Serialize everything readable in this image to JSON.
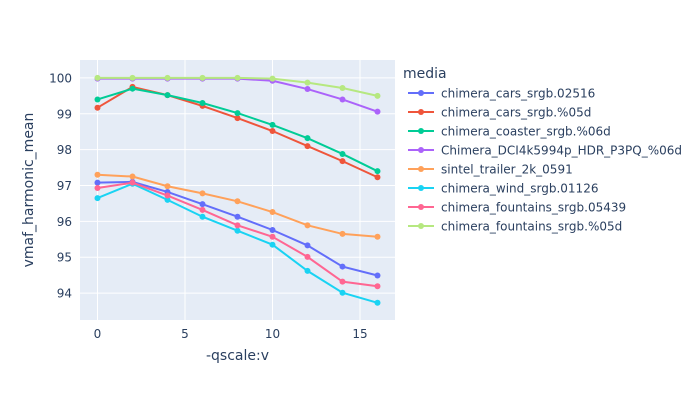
{
  "chart_data": {
    "type": "line",
    "xlabel": "-qscale:v",
    "ylabel": "vmaf_harmonic_mean",
    "legend_title": "media",
    "legend_position": "right",
    "xlim": [
      -1,
      17
    ],
    "ylim": [
      93.25,
      100.5
    ],
    "xticks": [
      0,
      5,
      10,
      15
    ],
    "yticks": [
      94,
      95,
      96,
      97,
      98,
      99,
      100
    ],
    "grid": true,
    "plot_background": "#E5ECF6",
    "x": [
      0,
      2,
      4,
      6,
      8,
      10,
      12,
      14,
      16
    ],
    "series": [
      {
        "name": "chimera_cars_srgb.02516",
        "color": "#636EFA",
        "values": [
          97.08,
          97.1,
          96.82,
          96.48,
          96.13,
          95.76,
          95.33,
          94.74,
          94.49
        ]
      },
      {
        "name": "chimera_cars_srgb.%05d",
        "color": "#EF553B",
        "values": [
          99.17,
          99.75,
          99.52,
          99.22,
          98.88,
          98.52,
          98.1,
          97.68,
          97.23
        ]
      },
      {
        "name": "chimera_coaster_srgb.%06d",
        "color": "#00CC96",
        "values": [
          99.4,
          99.7,
          99.52,
          99.3,
          99.02,
          98.69,
          98.32,
          97.88,
          97.4
        ]
      },
      {
        "name": "Chimera_DCI4k5994p_HDR_P3PQ_%06d",
        "color": "#AB63FA",
        "values": [
          99.98,
          99.98,
          99.98,
          99.98,
          99.98,
          99.92,
          99.69,
          99.4,
          99.06
        ]
      },
      {
        "name": "sintel_trailer_2k_0591",
        "color": "#FFA15A",
        "values": [
          97.3,
          97.25,
          96.98,
          96.78,
          96.56,
          96.26,
          95.89,
          95.65,
          95.57
        ]
      },
      {
        "name": "chimera_wind_srgb.01126",
        "color": "#19D3F3",
        "values": [
          96.65,
          97.05,
          96.6,
          96.13,
          95.74,
          95.35,
          94.62,
          94.01,
          93.73
        ]
      },
      {
        "name": "chimera_fountains_srgb.05439",
        "color": "#FF6692",
        "values": [
          96.93,
          97.08,
          96.72,
          96.32,
          95.89,
          95.57,
          95.01,
          94.32,
          94.19
        ]
      },
      {
        "name": "chimera_fountains_srgb.%05d",
        "color": "#B6E880",
        "values": [
          100.0,
          100.0,
          100.0,
          100.0,
          100.0,
          99.98,
          99.87,
          99.72,
          99.5
        ]
      }
    ]
  }
}
